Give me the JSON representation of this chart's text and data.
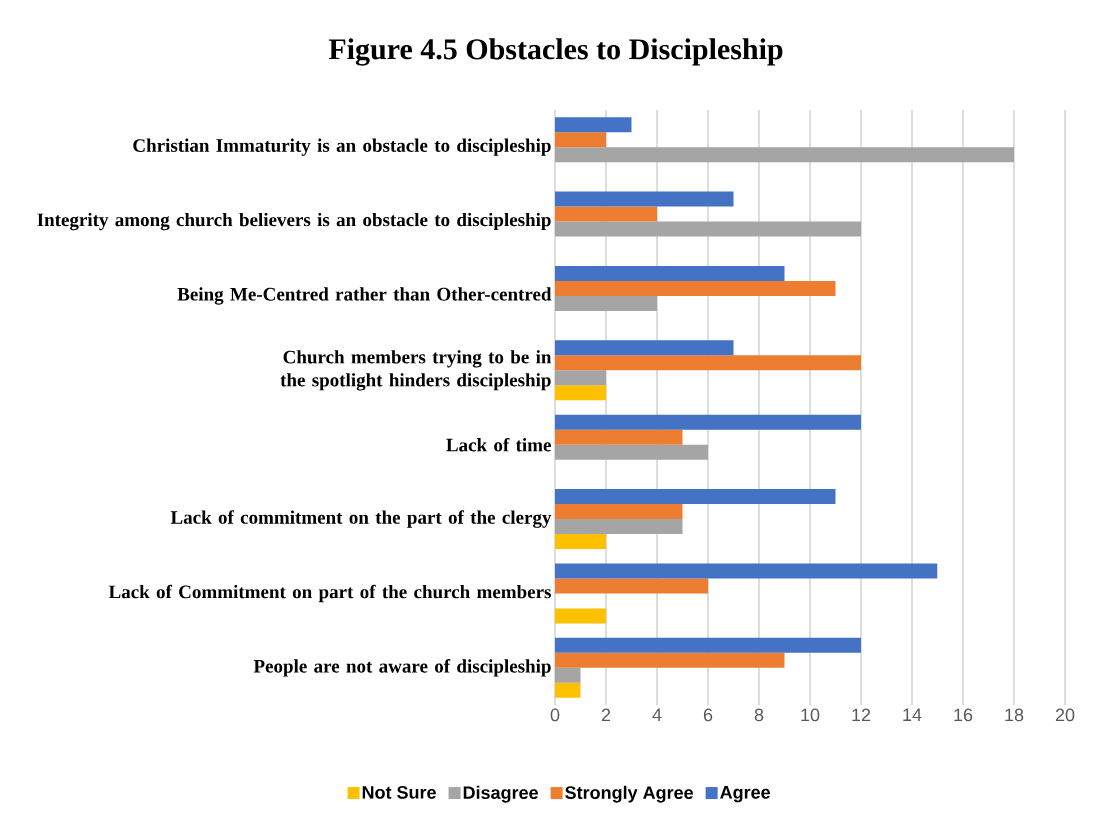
{
  "chart_data": {
    "type": "bar",
    "orientation": "horizontal",
    "title": "Figure 4.5  Obstacles to Discipleship",
    "categories": [
      "Christian Immaturity is an obstacle to discipleship",
      "Integrity among church believers is an obstacle to discipleship",
      "Being Me-Centred rather than Other-centred",
      "Church members trying to be in the spotlight hinders discipleship",
      "Lack of time",
      "Lack of commitment on the part of the clergy",
      "Lack of Commitment on part of the church members",
      "People are not aware of discipleship"
    ],
    "series": [
      {
        "name": "Not Sure",
        "color": "#ffc000",
        "values": [
          null,
          null,
          null,
          2,
          null,
          2,
          2,
          1
        ]
      },
      {
        "name": "Disagree",
        "color": "#a5a5a5",
        "values": [
          18,
          12,
          4,
          2,
          6,
          5,
          null,
          1
        ]
      },
      {
        "name": "Strongly Agree",
        "color": "#ed7d31",
        "values": [
          2,
          4,
          11,
          12,
          5,
          5,
          6,
          9
        ]
      },
      {
        "name": "Agree",
        "color": "#4472c4",
        "values": [
          3,
          7,
          9,
          7,
          12,
          11,
          15,
          12
        ]
      }
    ],
    "xlim": [
      0,
      20
    ],
    "xticks": [
      0,
      2,
      4,
      6,
      8,
      10,
      12,
      14,
      16,
      18,
      20
    ],
    "grid": "x",
    "legend": "bottom"
  }
}
